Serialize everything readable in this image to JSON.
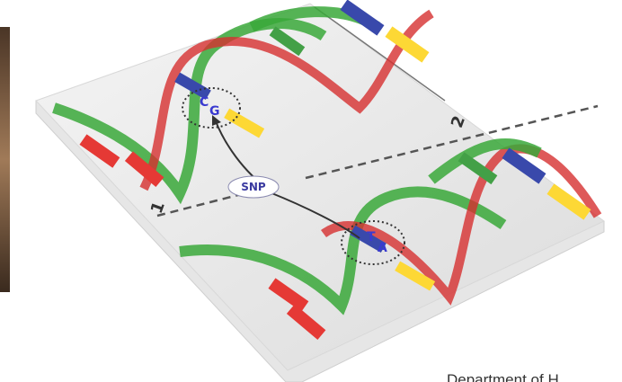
{
  "labels": {
    "snp": "SNP",
    "strand_1": "1",
    "strand_2": "2",
    "footer": "Department of H",
    "upper_pair": [
      "C",
      "G"
    ],
    "lower_pair": [
      "T",
      "A"
    ]
  }
}
